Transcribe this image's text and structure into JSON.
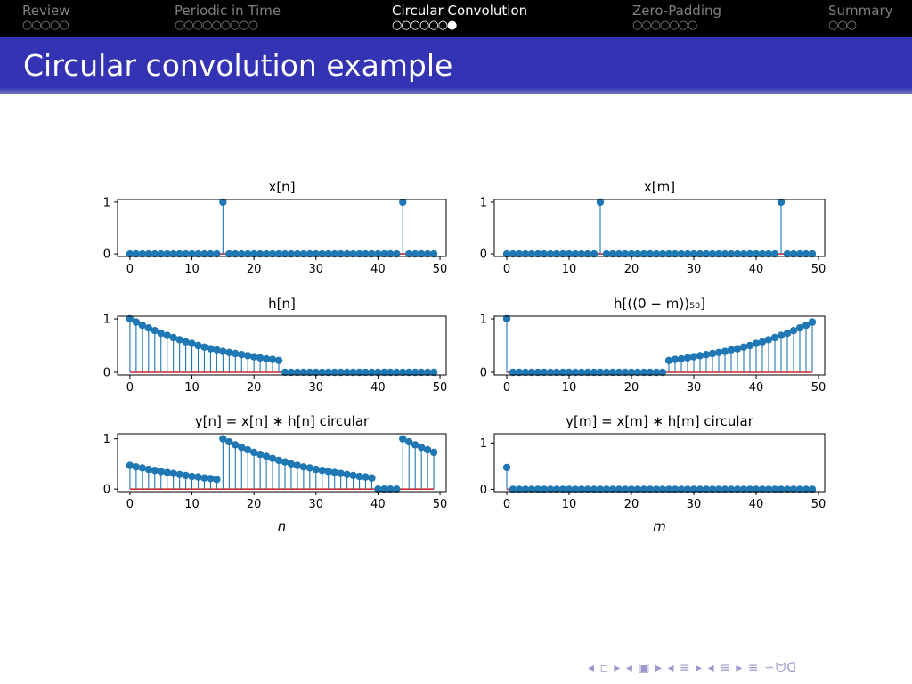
{
  "nav": {
    "sections": [
      {
        "label": "Review",
        "dots": "○○○○○",
        "active": false
      },
      {
        "label": "Periodic in Time",
        "dots": "○○○○○○○○○",
        "active": false
      },
      {
        "label": "Circular Convolution",
        "dots": "○○○○○○●",
        "active": true
      },
      {
        "label": "Zero-Padding",
        "dots": "○○○○○○○",
        "active": false
      },
      {
        "label": "Summary",
        "dots": "○○○",
        "active": false
      }
    ],
    "controls": "◂ ▫ ▸ ◂ ▣ ▸ ◂ ≡ ▸ ◂ ≡ ▸   ≡   ∽ᗢᗡ"
  },
  "slide": {
    "title": "Circular convolution example"
  },
  "colors": {
    "stem": "#1f77b4",
    "baseline": "#d62728",
    "title_bar": "#3333b3"
  },
  "chart_data": [
    {
      "type": "stem",
      "title": "x[n]",
      "xlabel": "",
      "ylabel": "",
      "xlim": [
        -2,
        51
      ],
      "ylim": [
        -0.05,
        1.05
      ],
      "xticks": [
        0,
        10,
        20,
        30,
        40,
        50
      ],
      "yticks": [
        0,
        1
      ],
      "x": [
        0,
        1,
        2,
        3,
        4,
        5,
        6,
        7,
        8,
        9,
        10,
        11,
        12,
        13,
        14,
        15,
        16,
        17,
        18,
        19,
        20,
        21,
        22,
        23,
        24,
        25,
        26,
        27,
        28,
        29,
        30,
        31,
        32,
        33,
        34,
        35,
        36,
        37,
        38,
        39,
        40,
        41,
        42,
        43,
        44,
        45,
        46,
        47,
        48,
        49
      ],
      "y": [
        0,
        0,
        0,
        0,
        0,
        0,
        0,
        0,
        0,
        0,
        0,
        0,
        0,
        0,
        0,
        1,
        0,
        0,
        0,
        0,
        0,
        0,
        0,
        0,
        0,
        0,
        0,
        0,
        0,
        0,
        0,
        0,
        0,
        0,
        0,
        0,
        0,
        0,
        0,
        0,
        0,
        0,
        0,
        0,
        1,
        0,
        0,
        0,
        0,
        0
      ]
    },
    {
      "type": "stem",
      "title": "x[m]",
      "xlabel": "",
      "ylabel": "",
      "xlim": [
        -2,
        51
      ],
      "ylim": [
        -0.05,
        1.05
      ],
      "xticks": [
        0,
        10,
        20,
        30,
        40,
        50
      ],
      "yticks": [
        0,
        1
      ],
      "x": [
        0,
        1,
        2,
        3,
        4,
        5,
        6,
        7,
        8,
        9,
        10,
        11,
        12,
        13,
        14,
        15,
        16,
        17,
        18,
        19,
        20,
        21,
        22,
        23,
        24,
        25,
        26,
        27,
        28,
        29,
        30,
        31,
        32,
        33,
        34,
        35,
        36,
        37,
        38,
        39,
        40,
        41,
        42,
        43,
        44,
        45,
        46,
        47,
        48,
        49
      ],
      "y": [
        0,
        0,
        0,
        0,
        0,
        0,
        0,
        0,
        0,
        0,
        0,
        0,
        0,
        0,
        0,
        1,
        0,
        0,
        0,
        0,
        0,
        0,
        0,
        0,
        0,
        0,
        0,
        0,
        0,
        0,
        0,
        0,
        0,
        0,
        0,
        0,
        0,
        0,
        0,
        0,
        0,
        0,
        0,
        0,
        1,
        0,
        0,
        0,
        0,
        0
      ]
    },
    {
      "type": "stem",
      "title": "h[n]",
      "xlabel": "",
      "ylabel": "",
      "xlim": [
        -2,
        51
      ],
      "ylim": [
        -0.05,
        1.05
      ],
      "xticks": [
        0,
        10,
        20,
        30,
        40,
        50
      ],
      "yticks": [
        0,
        1
      ],
      "x": [
        0,
        1,
        2,
        3,
        4,
        5,
        6,
        7,
        8,
        9,
        10,
        11,
        12,
        13,
        14,
        15,
        16,
        17,
        18,
        19,
        20,
        21,
        22,
        23,
        24,
        25,
        26,
        27,
        28,
        29,
        30,
        31,
        32,
        33,
        34,
        35,
        36,
        37,
        38,
        39,
        40,
        41,
        42,
        43,
        44,
        45,
        46,
        47,
        48,
        49
      ],
      "y": [
        1.0,
        0.94,
        0.88,
        0.83,
        0.78,
        0.73,
        0.69,
        0.65,
        0.61,
        0.57,
        0.54,
        0.5,
        0.47,
        0.44,
        0.42,
        0.39,
        0.37,
        0.35,
        0.33,
        0.31,
        0.29,
        0.27,
        0.25,
        0.24,
        0.22,
        0,
        0,
        0,
        0,
        0,
        0,
        0,
        0,
        0,
        0,
        0,
        0,
        0,
        0,
        0,
        0,
        0,
        0,
        0,
        0,
        0,
        0,
        0,
        0,
        0
      ]
    },
    {
      "type": "stem",
      "title": "h[((0 − m))₅₀]",
      "xlabel": "",
      "ylabel": "",
      "xlim": [
        -2,
        51
      ],
      "ylim": [
        -0.05,
        1.05
      ],
      "xticks": [
        0,
        10,
        20,
        30,
        40,
        50
      ],
      "yticks": [
        0,
        1
      ],
      "x": [
        0,
        1,
        2,
        3,
        4,
        5,
        6,
        7,
        8,
        9,
        10,
        11,
        12,
        13,
        14,
        15,
        16,
        17,
        18,
        19,
        20,
        21,
        22,
        23,
        24,
        25,
        26,
        27,
        28,
        29,
        30,
        31,
        32,
        33,
        34,
        35,
        36,
        37,
        38,
        39,
        40,
        41,
        42,
        43,
        44,
        45,
        46,
        47,
        48,
        49
      ],
      "y": [
        1.0,
        0,
        0,
        0,
        0,
        0,
        0,
        0,
        0,
        0,
        0,
        0,
        0,
        0,
        0,
        0,
        0,
        0,
        0,
        0,
        0,
        0,
        0,
        0,
        0,
        0,
        0.22,
        0.24,
        0.25,
        0.27,
        0.29,
        0.31,
        0.33,
        0.35,
        0.37,
        0.39,
        0.42,
        0.44,
        0.47,
        0.5,
        0.54,
        0.57,
        0.61,
        0.65,
        0.69,
        0.73,
        0.78,
        0.83,
        0.88,
        0.94
      ]
    },
    {
      "type": "stem",
      "title": "y[n] = x[n] ∗ h[n] circular",
      "xlabel": "n",
      "ylabel": "",
      "xlim": [
        -2,
        51
      ],
      "ylim": [
        -0.05,
        1.1
      ],
      "xticks": [
        0,
        10,
        20,
        30,
        40,
        50
      ],
      "yticks": [
        0,
        1
      ],
      "x": [
        0,
        1,
        2,
        3,
        4,
        5,
        6,
        7,
        8,
        9,
        10,
        11,
        12,
        13,
        14,
        15,
        16,
        17,
        18,
        19,
        20,
        21,
        22,
        23,
        24,
        25,
        26,
        27,
        28,
        29,
        30,
        31,
        32,
        33,
        34,
        35,
        36,
        37,
        38,
        39,
        40,
        41,
        42,
        43,
        44,
        45,
        46,
        47,
        48,
        49
      ],
      "y": [
        0.47,
        0.44,
        0.42,
        0.39,
        0.37,
        0.35,
        0.33,
        0.31,
        0.29,
        0.27,
        0.25,
        0.24,
        0.22,
        0.21,
        0.19,
        1.0,
        0.94,
        0.88,
        0.83,
        0.78,
        0.73,
        0.69,
        0.65,
        0.61,
        0.57,
        0.54,
        0.5,
        0.47,
        0.44,
        0.42,
        0.39,
        0.37,
        0.35,
        0.33,
        0.31,
        0.29,
        0.27,
        0.25,
        0.24,
        0.22,
        0,
        0,
        0,
        0,
        1.0,
        0.94,
        0.88,
        0.83,
        0.78,
        0.73
      ]
    },
    {
      "type": "stem",
      "title": "y[m] = x[m] ∗ h[m] circular",
      "xlabel": "m",
      "ylabel": "",
      "xlim": [
        -2,
        51
      ],
      "ylim": [
        -0.05,
        1.2
      ],
      "xticks": [
        0,
        10,
        20,
        30,
        40,
        50
      ],
      "yticks": [
        0,
        1
      ],
      "x": [
        0,
        1,
        2,
        3,
        4,
        5,
        6,
        7,
        8,
        9,
        10,
        11,
        12,
        13,
        14,
        15,
        16,
        17,
        18,
        19,
        20,
        21,
        22,
        23,
        24,
        25,
        26,
        27,
        28,
        29,
        30,
        31,
        32,
        33,
        34,
        35,
        36,
        37,
        38,
        39,
        40,
        41,
        42,
        43,
        44,
        45,
        46,
        47,
        48,
        49
      ],
      "y": [
        0.47,
        0,
        0,
        0,
        0,
        0,
        0,
        0,
        0,
        0,
        0,
        0,
        0,
        0,
        0,
        0,
        0,
        0,
        0,
        0,
        0,
        0,
        0,
        0,
        0,
        0,
        0,
        0,
        0,
        0,
        0,
        0,
        0,
        0,
        0,
        0,
        0,
        0,
        0,
        0,
        0,
        0,
        0,
        0,
        0,
        0,
        0,
        0,
        0,
        0
      ]
    }
  ]
}
